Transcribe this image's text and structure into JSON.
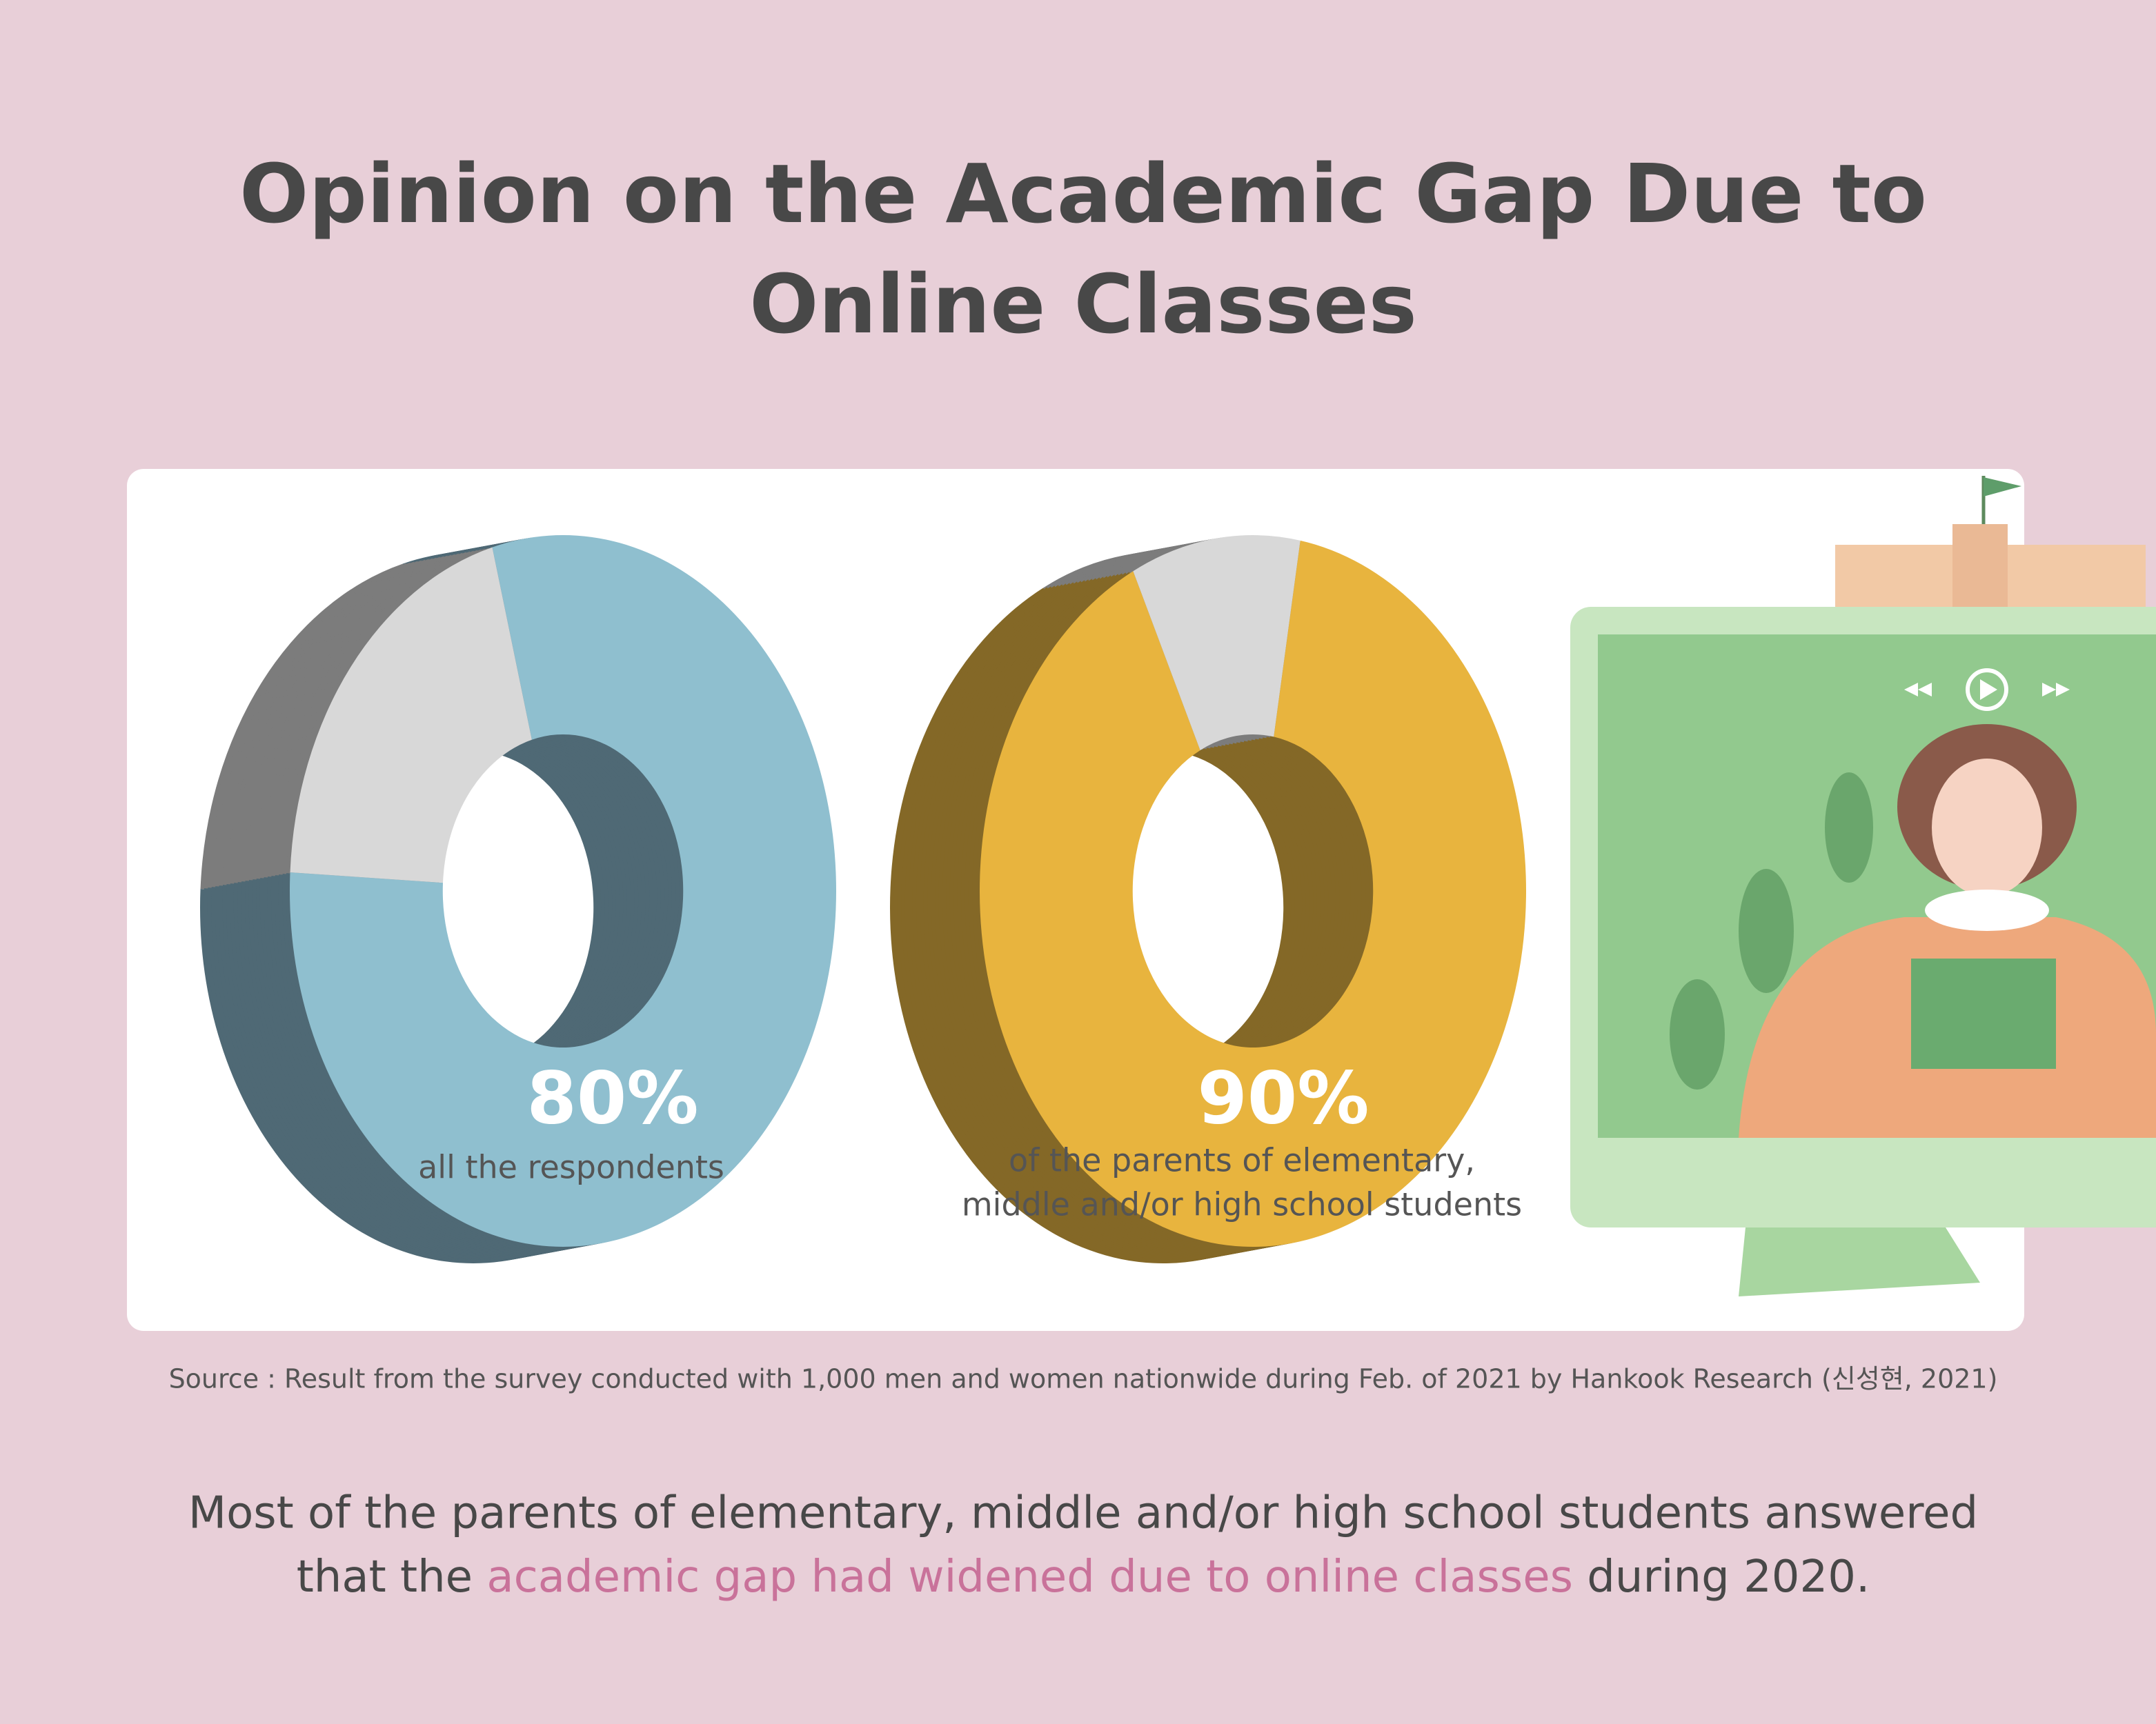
{
  "title": [
    "Opinion on the Academic Gap Due to",
    "Online Classes"
  ],
  "chart_data": [
    {
      "type": "donut",
      "values": [
        80,
        20
      ],
      "value_labels": [
        "80%",
        null
      ],
      "colors": [
        "#8fbfcf",
        "#d8d8d8"
      ],
      "side_colors": [
        "#4f6975",
        "#7c7c7c"
      ],
      "caption": [
        "all the respondents"
      ]
    },
    {
      "type": "donut",
      "values": [
        90,
        10
      ],
      "value_labels": [
        "90%",
        null
      ],
      "colors": [
        "#e8b43e",
        "#d8d8d8"
      ],
      "side_colors": [
        "#846827",
        "#7c7c7c"
      ],
      "caption": [
        "of the parents of elementary,",
        "middle and/or high school students"
      ]
    }
  ],
  "source": "Source : Result from the survey conducted with 1,000 men and women nationwide during Feb. of 2021 by Hankook Research (신성현, 2021)",
  "summary": {
    "line1": "Most of the parents of elementary, middle and/or high school students answered",
    "before": "that the ",
    "highlight": "academic gap had widened due to online classes",
    "after": " during 2020."
  }
}
